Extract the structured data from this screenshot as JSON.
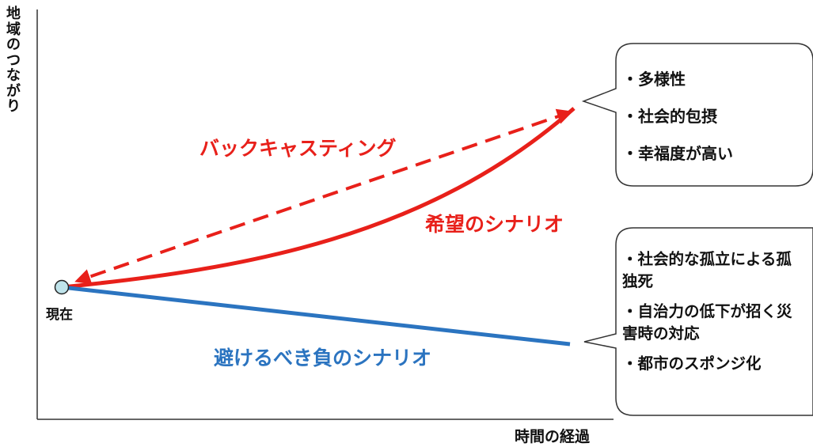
{
  "axes": {
    "y_label": "地域のつながり",
    "x_label": "時間の経過"
  },
  "origin_label": "現在",
  "scenarios": {
    "backcasting": "バックキャスティング",
    "hope": "希望のシナリオ",
    "avoid": "避けるべき負のシナリオ"
  },
  "hope_bubble": {
    "items": [
      "・多様性",
      "・社会的包摂",
      "・幸福度が高い"
    ]
  },
  "avoid_bubble": {
    "items": [
      "・社会的な孤立による孤独死",
      "・自治力の低下が招く災害時の対応",
      "・都市のスポンジ化"
    ]
  },
  "colors": {
    "hope": "#e8201a",
    "avoid": "#2b74c0",
    "origin_dot": "#bfe3ea"
  }
}
